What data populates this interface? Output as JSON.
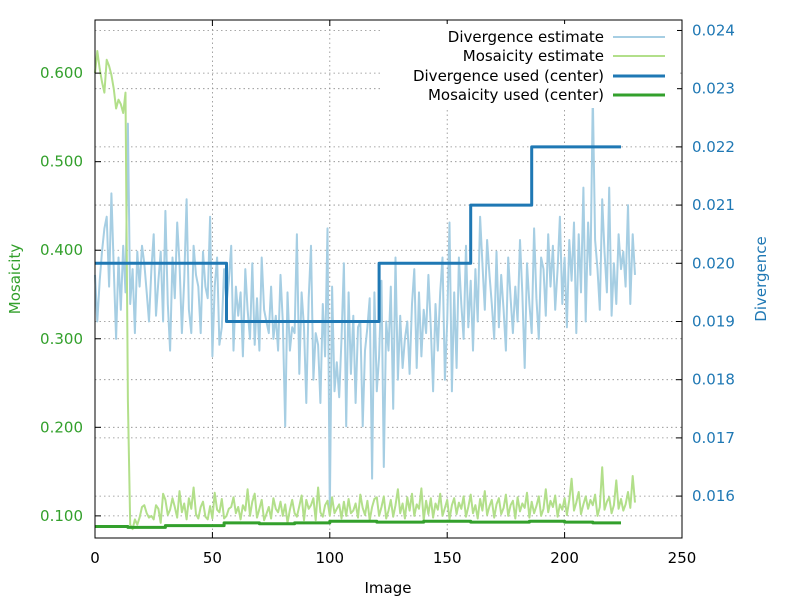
{
  "chart_data": {
    "type": "line",
    "xlabel": "Image",
    "ylabel_left": "Mosaicity",
    "ylabel_right": "Divergence",
    "xlim": [
      0,
      250
    ],
    "ylim_left": [
      0.075,
      0.66
    ],
    "ylim_right": [
      0.01528,
      0.02418
    ],
    "x_ticks": [
      0,
      50,
      100,
      150,
      200,
      250
    ],
    "y_left_ticks": [
      "0.100",
      "0.200",
      "0.300",
      "0.400",
      "0.500",
      "0.600"
    ],
    "y_right_ticks": [
      "0.016",
      "0.017",
      "0.018",
      "0.019",
      "0.020",
      "0.021",
      "0.022",
      "0.023",
      "0.024"
    ],
    "grid": true,
    "legend_position": "top-right",
    "colors": {
      "divergence_estimate": "#a6cee3",
      "mosaicity_estimate": "#b2df8a",
      "divergence_used": "#1f78b4",
      "mosaicity_used": "#33a02c",
      "left_axis": "#33a02c",
      "right_axis": "#1f78b4"
    },
    "series": [
      {
        "name": "Divergence estimate",
        "axis": "right",
        "x_start": 0,
        "x_step": 1,
        "values": [
          0.0198,
          0.019,
          0.0197,
          0.0202,
          0.0206,
          0.0208,
          0.0196,
          0.0212,
          0.0199,
          0.0187,
          0.0201,
          0.0192,
          0.0203,
          0.0195,
          0.0224,
          0.0193,
          0.0199,
          0.0188,
          0.0202,
          0.0196,
          0.0203,
          0.02,
          0.0195,
          0.019,
          0.0199,
          0.0205,
          0.0191,
          0.0197,
          0.0202,
          0.019,
          0.0209,
          0.0193,
          0.0185,
          0.0201,
          0.0194,
          0.0207,
          0.02,
          0.0188,
          0.0197,
          0.0211,
          0.0192,
          0.0188,
          0.0203,
          0.0198,
          0.0196,
          0.0188,
          0.0202,
          0.0196,
          0.0194,
          0.0208,
          0.0184,
          0.0196,
          0.0201,
          0.0186,
          0.0189,
          0.0199,
          0.0193,
          0.0197,
          0.0203,
          0.0185,
          0.0196,
          0.0191,
          0.0195,
          0.0184,
          0.0199,
          0.0192,
          0.0187,
          0.02,
          0.0186,
          0.0194,
          0.0185,
          0.0201,
          0.0192,
          0.019,
          0.0188,
          0.0196,
          0.0187,
          0.0191,
          0.0185,
          0.0198,
          0.019,
          0.0172,
          0.0195,
          0.0185,
          0.0189,
          0.0188,
          0.0205,
          0.0181,
          0.0195,
          0.0189,
          0.0176,
          0.0194,
          0.0203,
          0.018,
          0.0188,
          0.0186,
          0.0176,
          0.0193,
          0.0184,
          0.0206,
          0.0157,
          0.0196,
          0.0178,
          0.0183,
          0.0177,
          0.0187,
          0.02,
          0.0172,
          0.0195,
          0.0181,
          0.0191,
          0.0176,
          0.0189,
          0.019,
          0.0172,
          0.0185,
          0.0189,
          0.0194,
          0.0163,
          0.0195,
          0.0178,
          0.0184,
          0.0197,
          0.0165,
          0.019,
          0.0185,
          0.0196,
          0.0175,
          0.0201,
          0.018,
          0.0191,
          0.0182,
          0.0187,
          0.019,
          0.0181,
          0.0193,
          0.0199,
          0.0182,
          0.0195,
          0.0184,
          0.0192,
          0.0188,
          0.0198,
          0.0189,
          0.0178,
          0.0193,
          0.0185,
          0.0195,
          0.0201,
          0.018,
          0.019,
          0.0207,
          0.0178,
          0.0195,
          0.0182,
          0.0201,
          0.0193,
          0.0187,
          0.0203,
          0.0189,
          0.0197,
          0.0185,
          0.0199,
          0.019,
          0.0208,
          0.02,
          0.0192,
          0.0204,
          0.0198,
          0.0193,
          0.0187,
          0.0202,
          0.0189,
          0.0198,
          0.0192,
          0.0185,
          0.0201,
          0.0194,
          0.0188,
          0.0196,
          0.019,
          0.0204,
          0.0195,
          0.0182,
          0.02,
          0.0193,
          0.0188,
          0.0206,
          0.0194,
          0.0187,
          0.0201,
          0.0199,
          0.0191,
          0.0205,
          0.0196,
          0.0203,
          0.0192,
          0.0199,
          0.0208,
          0.0193,
          0.0201,
          0.0189,
          0.0204,
          0.0197,
          0.0207,
          0.0188,
          0.0205,
          0.0195,
          0.0213,
          0.019,
          0.0207,
          0.0198,
          0.0229,
          0.0204,
          0.0199,
          0.0192,
          0.0211,
          0.0202,
          0.0195,
          0.0213,
          0.0191,
          0.02,
          0.0193,
          0.0205,
          0.0199,
          0.0202,
          0.0196,
          0.021,
          0.0193,
          0.0205,
          0.0198
        ]
      },
      {
        "name": "Mosaicity estimate",
        "axis": "left",
        "x_start": 0,
        "x_step": 1,
        "values": [
          0.6,
          0.625,
          0.605,
          0.59,
          0.578,
          0.615,
          0.608,
          0.598,
          0.582,
          0.56,
          0.57,
          0.565,
          0.555,
          0.578,
          0.23,
          0.09,
          0.085,
          0.096,
          0.09,
          0.098,
          0.11,
          0.112,
          0.103,
          0.098,
          0.1,
          0.096,
          0.112,
          0.108,
          0.092,
          0.125,
          0.118,
          0.101,
          0.107,
          0.12,
          0.11,
          0.098,
          0.128,
          0.104,
          0.114,
          0.096,
          0.12,
          0.108,
          0.132,
          0.102,
          0.097,
          0.11,
          0.116,
          0.099,
          0.096,
          0.111,
          0.097,
          0.126,
          0.107,
          0.104,
          0.119,
          0.097,
          0.1,
          0.108,
          0.11,
          0.121,
          0.103,
          0.11,
          0.096,
          0.112,
          0.106,
          0.13,
          0.1,
          0.116,
          0.125,
          0.098,
          0.108,
          0.118,
          0.095,
          0.102,
          0.11,
          0.097,
          0.12,
          0.108,
          0.104,
          0.116,
          0.1,
          0.113,
          0.092,
          0.107,
          0.118,
          0.103,
          0.099,
          0.111,
          0.123,
          0.095,
          0.118,
          0.108,
          0.112,
          0.12,
          0.095,
          0.132,
          0.104,
          0.099,
          0.112,
          0.117,
          0.1,
          0.121,
          0.103,
          0.108,
          0.113,
          0.097,
          0.116,
          0.1,
          0.119,
          0.103,
          0.106,
          0.114,
          0.098,
          0.124,
          0.109,
          0.101,
          0.117,
          0.095,
          0.11,
          0.119,
          0.121,
          0.1,
          0.11,
          0.122,
          0.097,
          0.106,
          0.118,
          0.099,
          0.112,
          0.13,
          0.103,
          0.114,
          0.097,
          0.121,
          0.106,
          0.125,
          0.1,
          0.113,
          0.108,
          0.131,
          0.095,
          0.117,
          0.102,
          0.12,
          0.098,
          0.114,
          0.107,
          0.125,
          0.1,
          0.109,
          0.118,
          0.096,
          0.112,
          0.12,
          0.102,
          0.115,
          0.108,
          0.122,
          0.099,
          0.11,
          0.124,
          0.103,
          0.112,
          0.097,
          0.119,
          0.106,
          0.128,
          0.101,
          0.111,
          0.118,
          0.098,
          0.113,
          0.12,
          0.102,
          0.109,
          0.124,
          0.1,
          0.112,
          0.117,
          0.097,
          0.121,
          0.105,
          0.114,
          0.109,
          0.126,
          0.098,
          0.116,
          0.103,
          0.111,
          0.122,
          0.1,
          0.108,
          0.13,
          0.104,
          0.117,
          0.11,
          0.123,
          0.099,
          0.113,
          0.107,
          0.12,
          0.101,
          0.118,
          0.142,
          0.106,
          0.115,
          0.127,
          0.102,
          0.113,
          0.122,
          0.108,
          0.118,
          0.112,
          0.124,
          0.1,
          0.11,
          0.155,
          0.107,
          0.116,
          0.121,
          0.103,
          0.112,
          0.14,
          0.108,
          0.119,
          0.106,
          0.113,
          0.127,
          0.109,
          0.145,
          0.115
        ]
      },
      {
        "name": "Divergence used (center)",
        "axis": "right",
        "steps": [
          [
            0,
            0.02
          ],
          [
            56,
            0.019
          ],
          [
            121,
            0.02
          ],
          [
            160,
            0.021
          ],
          [
            186,
            0.022
          ],
          [
            224,
            0.022
          ]
        ]
      },
      {
        "name": "Mosaicity used (center)",
        "axis": "left",
        "steps": [
          [
            0,
            0.088
          ],
          [
            14,
            0.087
          ],
          [
            30,
            0.089
          ],
          [
            42,
            0.089
          ],
          [
            55,
            0.092
          ],
          [
            70,
            0.091
          ],
          [
            85,
            0.092
          ],
          [
            100,
            0.094
          ],
          [
            120,
            0.093
          ],
          [
            140,
            0.094
          ],
          [
            160,
            0.093
          ],
          [
            185,
            0.094
          ],
          [
            200,
            0.093
          ],
          [
            212,
            0.092
          ],
          [
            224,
            0.092
          ]
        ]
      }
    ]
  }
}
